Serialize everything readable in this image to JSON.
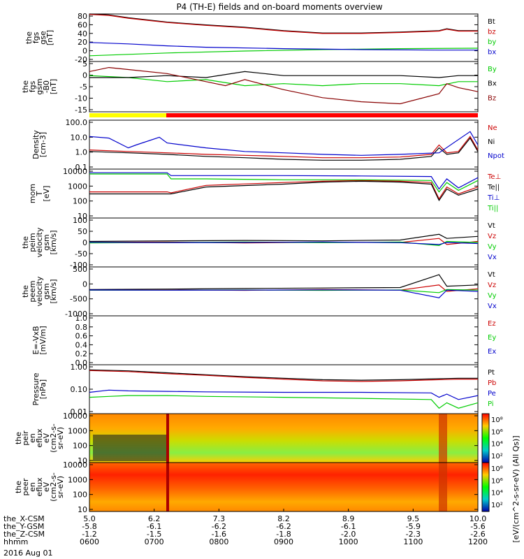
{
  "title": "P4 (TH-E) fields and on-board moments overview",
  "date_label": "2016 Aug 01",
  "colorbar_label_1": "[eV/(cm^2-s-sr-eV)]",
  "colorbar_label_2": "[eV/(cm^2-s-sr-eV) (All Qs)]",
  "orbit": {
    "labels": [
      "the_X-CSM",
      "the_Y-GSM",
      "the_Z-CSM",
      "hhmm"
    ],
    "columns": [
      {
        "x": "5.0",
        "y": "-5.8",
        "z": "-1.2",
        "t": "0600"
      },
      {
        "x": "6.2",
        "y": "-6.1",
        "z": "-1.5",
        "t": "0700"
      },
      {
        "x": "7.3",
        "y": "-6.2",
        "z": "-1.6",
        "t": "0800"
      },
      {
        "x": "8.2",
        "y": "-6.2",
        "z": "-1.8",
        "t": "0900"
      },
      {
        "x": "8.9",
        "y": "-6.1",
        "z": "-2.0",
        "t": "1000"
      },
      {
        "x": "9.5",
        "y": "-5.9",
        "z": "-2.3",
        "t": "1100"
      },
      {
        "x": "10.0",
        "y": "-5.6",
        "z": "-2.6",
        "t": "1200"
      }
    ]
  },
  "chart_data": [
    {
      "type": "line",
      "id": "fgs_gse",
      "ylabel": [
        "the",
        "fgs",
        "gse",
        "[nT]"
      ],
      "yticks": [
        "80",
        "60",
        "40",
        "20",
        "0",
        "-20"
      ],
      "ylim": [
        -20,
        80
      ],
      "series": [
        {
          "name": "Bt",
          "color": "#000000",
          "x": [
            0,
            0.05,
            0.1,
            0.2,
            0.3,
            0.4,
            0.5,
            0.6,
            0.7,
            0.8,
            0.9,
            0.92,
            0.95,
            1
          ],
          "values": [
            80,
            78,
            72,
            63,
            57,
            52,
            45,
            40,
            40,
            42,
            45,
            49,
            45,
            45
          ]
        },
        {
          "name": "bz",
          "color": "#cc0000",
          "x": [
            0,
            0.05,
            0.1,
            0.2,
            0.3,
            0.4,
            0.5,
            0.6,
            0.7,
            0.8,
            0.9,
            0.92,
            0.95,
            1
          ],
          "values": [
            79,
            77,
            71,
            62,
            56,
            51,
            44,
            39,
            39,
            41,
            44,
            48,
            44,
            44
          ]
        },
        {
          "name": "by",
          "color": "#00cc00",
          "x": [
            0,
            0.1,
            0.2,
            0.4,
            0.6,
            0.8,
            1
          ],
          "values": [
            -8,
            -5,
            -2,
            2,
            5,
            7,
            8
          ]
        },
        {
          "name": "bx",
          "color": "#0000cc",
          "x": [
            0,
            0.1,
            0.2,
            0.3,
            0.5,
            0.7,
            0.9,
            1
          ],
          "values": [
            20,
            17,
            13,
            10,
            7,
            5,
            4,
            4
          ]
        }
      ]
    },
    {
      "type": "line",
      "id": "fgs_gsm",
      "ylabel": [
        "the",
        "fgs",
        "gsm",
        "-B0",
        "[nT]"
      ],
      "yticks": [
        "5",
        "0",
        "-5",
        "-10",
        "-15"
      ],
      "ylim": [
        -18,
        7
      ],
      "series": [
        {
          "name": "By",
          "color": "#00cc00",
          "x": [
            0,
            0.1,
            0.2,
            0.3,
            0.4,
            0.5,
            0.6,
            0.7,
            0.8,
            0.9,
            0.95,
            1
          ],
          "values": [
            0,
            -1,
            -3,
            -2,
            -5,
            -4,
            -5,
            -4,
            -4,
            -5,
            -3,
            -3
          ]
        },
        {
          "name": "Bx",
          "color": "#000000",
          "x": [
            0,
            0.1,
            0.2,
            0.3,
            0.4,
            0.5,
            0.6,
            0.7,
            0.8,
            0.9,
            0.95,
            1
          ],
          "values": [
            -1,
            -1,
            0,
            -1,
            2,
            0,
            0,
            0,
            0,
            -1,
            0,
            0
          ]
        },
        {
          "name": "Bz",
          "color": "#880000",
          "x": [
            0,
            0.05,
            0.1,
            0.2,
            0.3,
            0.35,
            0.4,
            0.5,
            0.6,
            0.7,
            0.8,
            0.9,
            0.92,
            0.95,
            1
          ],
          "values": [
            2,
            4,
            3,
            1,
            -3,
            -5,
            -2,
            -7,
            -11,
            -13,
            -14,
            -9,
            -4,
            -6,
            -8
          ]
        }
      ]
    },
    {
      "type": "line",
      "id": "density",
      "ylabel": [
        "Density",
        "[cm-3]"
      ],
      "yticks": [
        "100.0",
        "10.0",
        "1.0",
        "0.1"
      ],
      "ylim": [
        0.1,
        100
      ],
      "log": true,
      "series": [
        {
          "name": "Ne",
          "color": "#cc0000",
          "x": [
            0,
            0.1,
            0.2,
            0.3,
            0.4,
            0.5,
            0.6,
            0.7,
            0.8,
            0.88,
            0.9,
            0.92,
            0.95,
            0.98,
            1
          ],
          "values": [
            1.5,
            1.2,
            1.0,
            0.8,
            0.7,
            0.6,
            0.5,
            0.5,
            0.55,
            0.8,
            3,
            1,
            1.2,
            10,
            1.5
          ]
        },
        {
          "name": "Ni",
          "color": "#000000",
          "x": [
            0,
            0.1,
            0.2,
            0.3,
            0.4,
            0.5,
            0.6,
            0.7,
            0.8,
            0.88,
            0.9,
            0.92,
            0.95,
            0.98,
            1
          ],
          "values": [
            1.2,
            1.0,
            0.8,
            0.6,
            0.5,
            0.4,
            0.35,
            0.35,
            0.4,
            0.6,
            2,
            0.8,
            1,
            8,
            1.2
          ]
        },
        {
          "name": "Npot",
          "color": "#0000cc",
          "x": [
            0,
            0.05,
            0.1,
            0.12,
            0.18,
            0.2,
            0.3,
            0.4,
            0.5,
            0.6,
            0.7,
            0.8,
            0.9,
            0.98,
            1
          ],
          "values": [
            10,
            8,
            2,
            3,
            9,
            4,
            2,
            1.2,
            1.0,
            0.8,
            0.7,
            0.8,
            1.0,
            20,
            3
          ]
        }
      ]
    },
    {
      "type": "line",
      "id": "mom_temp",
      "ylabel": [
        "mom",
        "T",
        "[eV]"
      ],
      "yticks": [
        "10000",
        "1000",
        "100",
        "10"
      ],
      "ylim": [
        10,
        10000
      ],
      "log": true,
      "series": [
        {
          "name": "Te⊥",
          "color": "#cc0000",
          "x": [
            0,
            0.2,
            0.21,
            0.3,
            0.5,
            0.6,
            0.7,
            0.8,
            0.88,
            0.9,
            0.92,
            0.95,
            1
          ],
          "values": [
            400,
            400,
            350,
            1000,
            1500,
            1800,
            2000,
            1800,
            1500,
            150,
            800,
            300,
            800
          ]
        },
        {
          "name": "Te||",
          "color": "#000000",
          "x": [
            0,
            0.2,
            0.21,
            0.3,
            0.5,
            0.6,
            0.7,
            0.8,
            0.88,
            0.9,
            0.92,
            0.95,
            1
          ],
          "values": [
            300,
            300,
            300,
            800,
            1200,
            1600,
            1800,
            1600,
            1200,
            120,
            600,
            250,
            600
          ]
        },
        {
          "name": "Ti⊥",
          "color": "#0000cc",
          "x": [
            0,
            0.2,
            0.21,
            0.3,
            0.5,
            0.7,
            0.88,
            0.9,
            0.92,
            0.95,
            1
          ],
          "values": [
            6000,
            6000,
            4000,
            4000,
            4000,
            3800,
            3500,
            600,
            2500,
            700,
            3000
          ]
        },
        {
          "name": "Ti||",
          "color": "#00cc00",
          "x": [
            0,
            0.2,
            0.21,
            0.3,
            0.5,
            0.7,
            0.88,
            0.9,
            0.92,
            0.95,
            1
          ],
          "values": [
            5000,
            5000,
            2500,
            2500,
            2200,
            2200,
            2000,
            400,
            1500,
            500,
            2000
          ]
        }
      ]
    },
    {
      "type": "line",
      "id": "peim_vel",
      "ylabel": [
        "the",
        "peim",
        "velocity",
        "gsm",
        "[km/s]"
      ],
      "yticks": [
        "100",
        "50",
        "0",
        "-50",
        "-100"
      ],
      "ylim": [
        -120,
        120
      ],
      "series": [
        {
          "name": "Vt",
          "color": "#000000",
          "x": [
            0,
            0.2,
            0.4,
            0.6,
            0.8,
            0.9,
            0.92,
            1
          ],
          "values": [
            5,
            8,
            10,
            8,
            12,
            40,
            20,
            30
          ]
        },
        {
          "name": "Vz",
          "color": "#cc0000",
          "x": [
            0,
            0.2,
            0.4,
            0.6,
            0.8,
            0.9,
            0.92,
            1
          ],
          "values": [
            0,
            2,
            -2,
            1,
            0,
            20,
            -10,
            5
          ]
        },
        {
          "name": "Vy",
          "color": "#00cc00",
          "x": [
            0,
            0.2,
            0.4,
            0.6,
            0.8,
            0.9,
            0.92,
            1
          ],
          "values": [
            -2,
            0,
            2,
            -1,
            2,
            -15,
            5,
            0
          ]
        },
        {
          "name": "Vx",
          "color": "#0000cc",
          "x": [
            0,
            0.2,
            0.4,
            0.6,
            0.8,
            0.9,
            0.92,
            1
          ],
          "values": [
            1,
            -1,
            0,
            2,
            -1,
            -10,
            0,
            -5
          ]
        }
      ]
    },
    {
      "type": "line",
      "id": "peem_vel",
      "ylabel": [
        "the",
        "peem",
        "velocity",
        "gsm",
        "[km/s]"
      ],
      "yticks": [
        "500",
        "0",
        "-500",
        "-1000"
      ],
      "ylim": [
        -1000,
        900
      ],
      "series": [
        {
          "name": "Vt",
          "color": "#000000",
          "x": [
            0,
            0.2,
            0.4,
            0.6,
            0.8,
            0.9,
            0.92,
            1
          ],
          "values": [
            20,
            40,
            60,
            80,
            100,
            600,
            150,
            200
          ]
        },
        {
          "name": "Vz",
          "color": "#cc0000",
          "x": [
            0,
            0.2,
            0.4,
            0.6,
            0.8,
            0.9,
            0.92,
            1
          ],
          "values": [
            0,
            10,
            -10,
            20,
            0,
            200,
            -50,
            50
          ]
        },
        {
          "name": "Vy",
          "color": "#00cc00",
          "x": [
            0,
            0.2,
            0.4,
            0.6,
            0.8,
            0.9,
            0.92,
            1
          ],
          "values": [
            -5,
            0,
            5,
            -10,
            5,
            -100,
            20,
            0
          ]
        },
        {
          "name": "Vx",
          "color": "#0000cc",
          "x": [
            0,
            0.2,
            0.4,
            0.6,
            0.8,
            0.9,
            0.92,
            1
          ],
          "values": [
            5,
            -5,
            0,
            10,
            -5,
            -300,
            0,
            -50
          ]
        }
      ]
    },
    {
      "type": "line",
      "id": "efield",
      "ylabel": [
        "E=-VxB",
        "[mV/m]"
      ],
      "yticks": [
        "1.0",
        "0.8",
        "0.6",
        "0.4",
        "0.2",
        "0.0"
      ],
      "ylim": [
        0,
        1
      ],
      "series": [
        {
          "name": "Ez",
          "color": "#cc0000",
          "x": [],
          "values": []
        },
        {
          "name": "Ey",
          "color": "#00cc00",
          "x": [],
          "values": []
        },
        {
          "name": "Ex",
          "color": "#0000cc",
          "x": [],
          "values": []
        }
      ]
    },
    {
      "type": "line",
      "id": "pressure",
      "ylabel": [
        "Pressure",
        "[nPa]"
      ],
      "yticks": [
        "1.00",
        "0.10",
        "0.01"
      ],
      "ylim": [
        0.01,
        5
      ],
      "log": true,
      "series": [
        {
          "name": "Pt",
          "color": "#000000",
          "x": [
            0,
            0.1,
            0.2,
            0.3,
            0.4,
            0.5,
            0.6,
            0.7,
            0.8,
            0.9,
            0.95,
            1
          ],
          "values": [
            2.6,
            2.3,
            1.8,
            1.4,
            1.1,
            0.9,
            0.75,
            0.7,
            0.75,
            0.85,
            0.9,
            0.9
          ]
        },
        {
          "name": "Pb",
          "color": "#cc0000",
          "x": [
            0,
            0.1,
            0.2,
            0.3,
            0.4,
            0.5,
            0.6,
            0.7,
            0.8,
            0.9,
            0.95,
            1
          ],
          "values": [
            2.4,
            2.1,
            1.6,
            1.3,
            1.0,
            0.8,
            0.65,
            0.6,
            0.65,
            0.75,
            0.8,
            0.8
          ]
        },
        {
          "name": "Pe",
          "color": "#0000cc",
          "x": [
            0,
            0.05,
            0.1,
            0.2,
            0.3,
            0.5,
            0.7,
            0.88,
            0.9,
            0.92,
            0.95,
            1
          ],
          "values": [
            0.15,
            0.2,
            0.18,
            0.17,
            0.16,
            0.15,
            0.15,
            0.14,
            0.08,
            0.12,
            0.06,
            0.1
          ]
        },
        {
          "name": "Pi",
          "color": "#00cc00",
          "x": [
            0,
            0.05,
            0.1,
            0.2,
            0.3,
            0.5,
            0.7,
            0.88,
            0.9,
            0.92,
            0.95,
            1
          ],
          "values": [
            0.08,
            0.09,
            0.1,
            0.1,
            0.09,
            0.08,
            0.07,
            0.06,
            0.02,
            0.04,
            0.02,
            0.04
          ]
        }
      ]
    },
    {
      "type": "heatmap",
      "id": "peir",
      "ylabel": [
        "the",
        "peir",
        "en",
        "eflux",
        "eV",
        "(cm2-s-",
        "sr-eV)"
      ],
      "yticks": [
        "10000",
        "1000",
        "100",
        "10"
      ],
      "ylim": [
        5,
        30000
      ],
      "log": true
    },
    {
      "type": "heatmap",
      "id": "peer",
      "ylabel": [
        "the",
        "peer",
        "en",
        "eflux",
        "eV",
        "(cm2-s-",
        "sr-eV)"
      ],
      "yticks": [
        "10000",
        "1000",
        "100",
        "10"
      ],
      "ylim": [
        5,
        30000
      ],
      "log": true
    }
  ],
  "colorbar_ticks_1": [
    "10⁸",
    "10⁶",
    "10⁴",
    "10²"
  ],
  "colorbar_ticks_2": [
    "10⁸",
    "10⁶",
    "10⁴",
    "10²"
  ]
}
